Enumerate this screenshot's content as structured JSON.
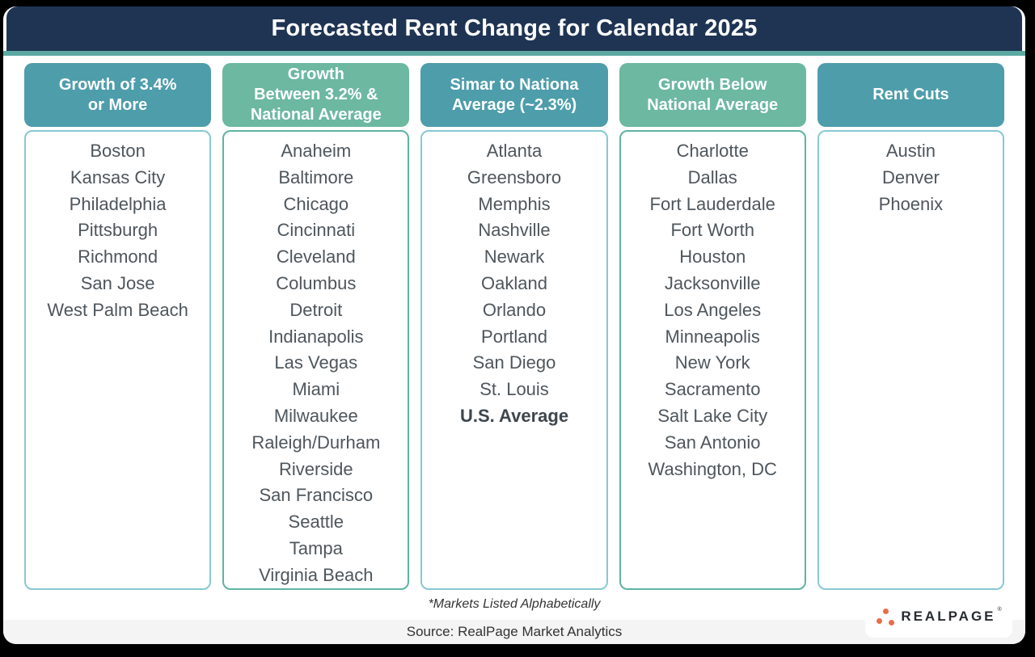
{
  "title": "Forecasted Rent Change for Calendar 2025",
  "footnote": "*Markets Listed Alphabetically",
  "source": "Source: RealPage Market Analytics",
  "logo": {
    "text": "REALPAGE",
    "trademark": "®"
  },
  "colors": {
    "navy": "#1f3453",
    "accent_underline": "#5ca9a3",
    "teal_header": "#4e9dab",
    "green_header": "#6cb8a0",
    "teal_border": "#87c9d3",
    "green_border": "#5fb4a2",
    "city_text": "#4e565c",
    "source_band": "#f4f4f4",
    "logo_orange": "#e96d4d",
    "logo_text": "#272b30"
  },
  "columns": [
    {
      "tone": "teal",
      "header": "Growth of 3.4%\nor More",
      "cities": [
        "Boston",
        "Kansas City",
        "Philadelphia",
        "Pittsburgh",
        "Richmond",
        "San Jose",
        "West Palm Beach"
      ]
    },
    {
      "tone": "green",
      "header": "Growth\nBetween 3.2% &\nNational Average",
      "cities": [
        "Anaheim",
        "Baltimore",
        "Chicago",
        "Cincinnati",
        "Cleveland",
        "Columbus",
        "Detroit",
        "Indianapolis",
        "Las Vegas",
        "Miami",
        "Milwaukee",
        "Raleigh/Durham",
        "Riverside",
        "San Francisco",
        "Seattle",
        "Tampa",
        "Virginia Beach"
      ]
    },
    {
      "tone": "teal",
      "header": "Simar to Nationa\nAverage (~2.3%)",
      "cities": [
        "Atlanta",
        "Greensboro",
        "Memphis",
        "Nashville",
        "Newark",
        "Oakland",
        "Orlando",
        "Portland",
        "San Diego",
        "St. Louis",
        "U.S. Average"
      ],
      "bold_entry": "U.S. Average"
    },
    {
      "tone": "green",
      "header": "Growth Below\nNational Average",
      "cities": [
        "Charlotte",
        "Dallas",
        "Fort Lauderdale",
        "Fort Worth",
        "Houston",
        "Jacksonville",
        "Los Angeles",
        "Minneapolis",
        "New York",
        "Sacramento",
        "Salt Lake City",
        "San Antonio",
        "Washington, DC"
      ]
    },
    {
      "tone": "teal",
      "header": "Rent Cuts",
      "cities": [
        "Austin",
        "Denver",
        "Phoenix"
      ]
    }
  ],
  "chart_data": {
    "type": "table",
    "title": "Forecasted Rent Change for Calendar 2025",
    "footnote": "*Markets Listed Alphabetically",
    "source": "Source: RealPage Market Analytics",
    "groups": [
      {
        "category": "Growth of 3.4% or More",
        "markets": [
          "Boston",
          "Kansas City",
          "Philadelphia",
          "Pittsburgh",
          "Richmond",
          "San Jose",
          "West Palm Beach"
        ]
      },
      {
        "category": "Growth Between 3.2% & National Average",
        "markets": [
          "Anaheim",
          "Baltimore",
          "Chicago",
          "Cincinnati",
          "Cleveland",
          "Columbus",
          "Detroit",
          "Indianapolis",
          "Las Vegas",
          "Miami",
          "Milwaukee",
          "Raleigh/Durham",
          "Riverside",
          "San Francisco",
          "Seattle",
          "Tampa",
          "Virginia Beach"
        ]
      },
      {
        "category": "Simar to Nationa Average (~2.3%)",
        "markets": [
          "Atlanta",
          "Greensboro",
          "Memphis",
          "Nashville",
          "Newark",
          "Oakland",
          "Orlando",
          "Portland",
          "San Diego",
          "St. Louis",
          "U.S. Average"
        ]
      },
      {
        "category": "Growth Below National Average",
        "markets": [
          "Charlotte",
          "Dallas",
          "Fort Lauderdale",
          "Fort Worth",
          "Houston",
          "Jacksonville",
          "Los Angeles",
          "Minneapolis",
          "New York",
          "Sacramento",
          "Salt Lake City",
          "San Antonio",
          "Washington, DC"
        ]
      },
      {
        "category": "Rent Cuts",
        "markets": [
          "Austin",
          "Denver",
          "Phoenix"
        ]
      }
    ]
  }
}
